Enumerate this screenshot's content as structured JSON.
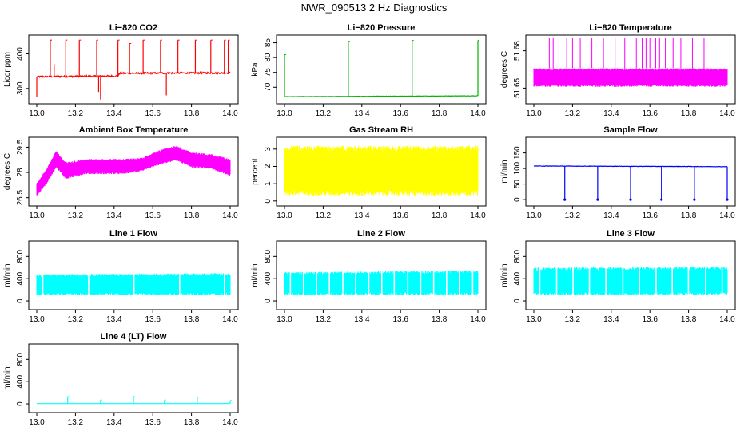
{
  "page_title": "NWR_090513 2 Hz Diagnostics",
  "chart_data": [
    {
      "type": "line",
      "title": "Li−820 CO2",
      "ylabel": "Licor ppm",
      "color": "#ff0000",
      "xlim": [
        13.0,
        14.0
      ],
      "xticks": [
        "13.0",
        "13.2",
        "13.4",
        "13.6",
        "13.8",
        "14.0"
      ],
      "ylim": [
        265,
        445
      ],
      "yticks": [
        300,
        400
      ],
      "baseline": [
        [
          13.0,
          334
        ],
        [
          13.42,
          336
        ],
        [
          13.43,
          344
        ],
        [
          14.0,
          345
        ]
      ],
      "spikes": [
        [
          13.07,
          440
        ],
        [
          13.09,
          368
        ],
        [
          13.15,
          440
        ],
        [
          13.22,
          440
        ],
        [
          13.31,
          440
        ],
        [
          13.42,
          440
        ],
        [
          13.48,
          430
        ],
        [
          13.55,
          440
        ],
        [
          13.64,
          440
        ],
        [
          13.73,
          440
        ],
        [
          13.82,
          440
        ],
        [
          13.9,
          440
        ],
        [
          13.97,
          440
        ],
        [
          13.99,
          440
        ]
      ],
      "dips": [
        [
          13.0,
          275
        ],
        [
          13.32,
          290
        ],
        [
          13.33,
          268
        ],
        [
          13.67,
          280
        ]
      ],
      "noise": 8
    },
    {
      "type": "line",
      "title": "Li−820 Pressure",
      "ylabel": "kPa",
      "color": "#00b400",
      "xlim": [
        13.0,
        14.0
      ],
      "xticks": [
        "13.0",
        "13.2",
        "13.4",
        "13.6",
        "13.8",
        "14.0"
      ],
      "ylim": [
        65.5,
        86.5
      ],
      "yticks": [
        70,
        75,
        80,
        85
      ],
      "baseline": [
        [
          13.0,
          66.8
        ],
        [
          14.0,
          67.1
        ]
      ],
      "spikes": [
        [
          13.0,
          81
        ],
        [
          13.33,
          85.5
        ],
        [
          13.66,
          85.8
        ],
        [
          14.0,
          85.8
        ]
      ],
      "dips": [],
      "noise": 0.2
    },
    {
      "type": "band",
      "title": "Li−820 Temperature",
      "ylabel": "degrees C",
      "color": "#ff00ff",
      "xlim": [
        13.0,
        14.0
      ],
      "xticks": [
        "13.0",
        "13.2",
        "13.4",
        "13.6",
        "13.8",
        "14.0"
      ],
      "ylim": [
        51.64,
        51.69
      ],
      "yticks": [
        51.65,
        51.68
      ],
      "band": [
        [
          13.0,
          51.651,
          51.666
        ],
        [
          14.0,
          51.651,
          51.666
        ]
      ],
      "spikes": [
        [
          13.08,
          51.69
        ],
        [
          13.1,
          51.69
        ],
        [
          13.13,
          51.69
        ],
        [
          13.17,
          51.69
        ],
        [
          13.2,
          51.69
        ],
        [
          13.24,
          51.69
        ],
        [
          13.3,
          51.69
        ],
        [
          13.36,
          51.69
        ],
        [
          13.42,
          51.69
        ],
        [
          13.47,
          51.69
        ],
        [
          13.53,
          51.69
        ],
        [
          13.56,
          51.69
        ],
        [
          13.58,
          51.69
        ],
        [
          13.6,
          51.69
        ],
        [
          13.63,
          51.69
        ],
        [
          13.65,
          51.69
        ],
        [
          13.68,
          51.69
        ],
        [
          13.72,
          51.69
        ],
        [
          13.76,
          51.69
        ],
        [
          13.82,
          51.69
        ],
        [
          13.88,
          51.69
        ]
      ]
    },
    {
      "type": "band",
      "title": "Ambient Box Temperature",
      "ylabel": "degrees C",
      "color": "#ff00ff",
      "xlim": [
        13.0,
        14.0
      ],
      "xticks": [
        "13.0",
        "13.2",
        "13.4",
        "13.6",
        "13.8",
        "14.0"
      ],
      "ylim": [
        26.2,
        29.9
      ],
      "yticks": [
        26.5,
        28.0,
        29.5
      ],
      "band": [
        [
          13.0,
          26.6,
          27.4
        ],
        [
          13.05,
          27.3,
          28.2
        ],
        [
          13.1,
          28.3,
          29.3
        ],
        [
          13.15,
          27.6,
          28.6
        ],
        [
          13.25,
          27.9,
          28.8
        ],
        [
          13.35,
          27.9,
          28.8
        ],
        [
          13.45,
          27.9,
          28.8
        ],
        [
          13.55,
          28.1,
          28.9
        ],
        [
          13.65,
          28.5,
          29.4
        ],
        [
          13.72,
          28.7,
          29.6
        ],
        [
          13.8,
          28.3,
          29.2
        ],
        [
          13.9,
          28.2,
          29.1
        ],
        [
          14.0,
          27.8,
          28.8
        ]
      ],
      "spikes": []
    },
    {
      "type": "band",
      "title": "Gas Stream RH",
      "ylabel": "percent",
      "color": "#ffff00",
      "xlim": [
        13.0,
        14.0
      ],
      "xticks": [
        "13.0",
        "13.2",
        "13.4",
        "13.6",
        "13.8",
        "14.0"
      ],
      "ylim": [
        -0.1,
        3.5
      ],
      "yticks": [
        0,
        1,
        2,
        3
      ],
      "band": [
        [
          13.0,
          0.3,
          3.2
        ],
        [
          14.0,
          0.3,
          3.2
        ]
      ],
      "spikes": []
    },
    {
      "type": "line",
      "title": "Sample Flow",
      "ylabel": "ml/min",
      "color": "#0000ff",
      "xlim": [
        13.0,
        14.0
      ],
      "xticks": [
        "13.0",
        "13.2",
        "13.4",
        "13.6",
        "13.8",
        "14.0"
      ],
      "ylim": [
        -10,
        190
      ],
      "yticks": [
        0,
        50,
        100,
        150
      ],
      "baseline": [
        [
          13.0,
          108
        ],
        [
          14.0,
          106
        ]
      ],
      "spikes": [],
      "dips": [
        [
          13.16,
          0
        ],
        [
          13.33,
          0
        ],
        [
          13.5,
          0
        ],
        [
          13.66,
          0
        ],
        [
          13.83,
          0
        ],
        [
          14.0,
          0
        ]
      ],
      "noise": 2
    },
    {
      "type": "band",
      "title": "Line 1 Flow",
      "ylabel": "ml/min",
      "color": "#00ffff",
      "xlim": [
        13.0,
        14.0
      ],
      "xticks": [
        "13.0",
        "13.2",
        "13.4",
        "13.6",
        "13.8",
        "14.0"
      ],
      "ylim": [
        -100,
        1020
      ],
      "yticks": [
        0,
        400,
        800
      ],
      "band": [
        [
          13.0,
          100,
          480
        ],
        [
          14.0,
          100,
          500
        ]
      ],
      "spikes": []
    },
    {
      "type": "band",
      "title": "Line 2 Flow",
      "ylabel": "ml/min",
      "color": "#00ffff",
      "xlim": [
        13.0,
        14.0
      ],
      "xticks": [
        "13.0",
        "13.2",
        "13.4",
        "13.6",
        "13.8",
        "14.0"
      ],
      "ylim": [
        -100,
        1020
      ],
      "yticks": [
        0,
        400,
        800
      ],
      "band": [
        [
          13.0,
          100,
          520
        ],
        [
          14.0,
          100,
          550
        ]
      ],
      "spikes": []
    },
    {
      "type": "band",
      "title": "Line 3 Flow",
      "ylabel": "ml/min",
      "color": "#00ffff",
      "xlim": [
        13.0,
        14.0
      ],
      "xticks": [
        "13.0",
        "13.2",
        "13.4",
        "13.6",
        "13.8",
        "14.0"
      ],
      "ylim": [
        -100,
        1020
      ],
      "yticks": [
        0,
        400,
        800
      ],
      "band": [
        [
          13.0,
          100,
          600
        ],
        [
          14.0,
          100,
          620
        ]
      ],
      "spikes": []
    },
    {
      "type": "line",
      "title": "Line 4 (LT) Flow",
      "ylabel": "ml/min",
      "color": "#00ffff",
      "xlim": [
        13.0,
        14.0
      ],
      "xticks": [
        "13.0",
        "13.2",
        "13.4",
        "13.6",
        "13.8",
        "14.0"
      ],
      "ylim": [
        -100,
        1020
      ],
      "yticks": [
        0,
        400,
        800
      ],
      "baseline": [
        [
          13.0,
          5
        ],
        [
          14.0,
          5
        ]
      ],
      "spikes": [
        [
          13.16,
          130
        ],
        [
          13.33,
          70
        ],
        [
          13.5,
          130
        ],
        [
          13.66,
          70
        ],
        [
          13.83,
          120
        ],
        [
          14.0,
          60
        ]
      ],
      "dips": [],
      "noise": 1
    }
  ]
}
